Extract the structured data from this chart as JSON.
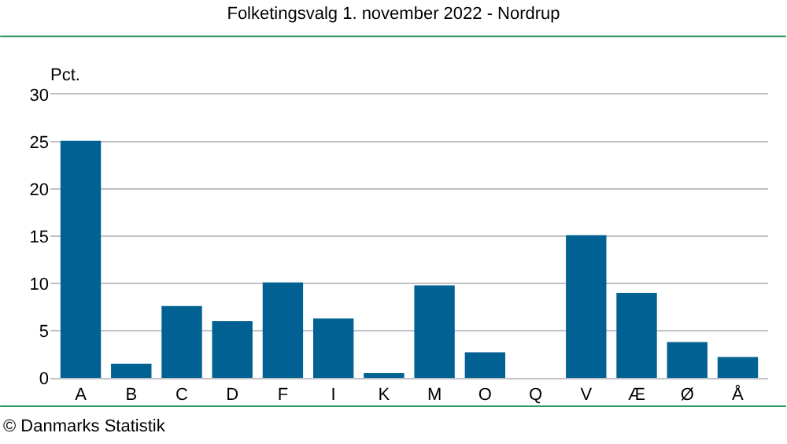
{
  "chart_data": {
    "type": "bar",
    "title": "Folketingsvalg 1. november 2022 - Nordrup",
    "ylabel": "Pct.",
    "categories": [
      "A",
      "B",
      "C",
      "D",
      "F",
      "I",
      "K",
      "M",
      "O",
      "Q",
      "V",
      "Æ",
      "Ø",
      "Å"
    ],
    "values": [
      25.1,
      1.5,
      7.6,
      6.0,
      10.1,
      6.3,
      0.5,
      9.8,
      2.7,
      0,
      15.1,
      9.0,
      3.8,
      2.2
    ],
    "color": "#006192",
    "ylim": [
      0,
      30
    ],
    "yticks": [
      0,
      5,
      10,
      15,
      20,
      25,
      30
    ],
    "grid": "y",
    "legend": false,
    "annotations": [
      "© Danmarks Statistik"
    ]
  }
}
